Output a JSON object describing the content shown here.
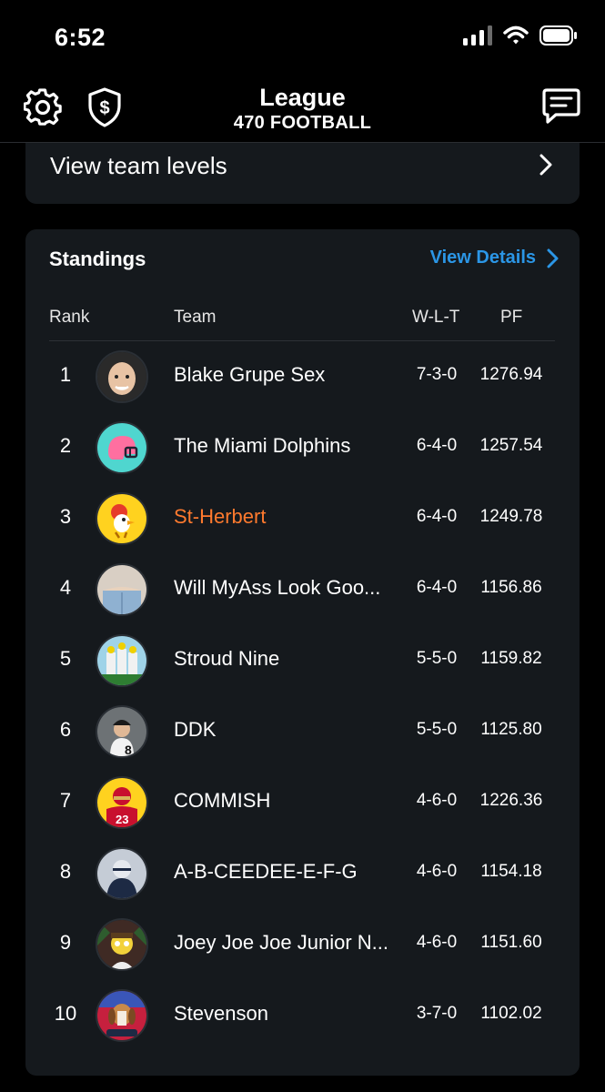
{
  "status_bar": {
    "time": "6:52",
    "icons": [
      "signal-icon",
      "wifi-icon",
      "battery-icon"
    ]
  },
  "nav": {
    "title": "League",
    "subtitle": "470 FOOTBALL",
    "left_icons": [
      "gear-icon",
      "shield-dollar-icon"
    ],
    "right_icon": "chat-icon"
  },
  "levels": {
    "label": "View team levels"
  },
  "standings": {
    "title": "Standings",
    "details_label": "View Details",
    "columns": {
      "rank": "Rank",
      "team": "Team",
      "wlt": "W-L-T",
      "pf": "PF"
    },
    "accent_color": "#2b96e6",
    "highlight_color": "#ff7a2e",
    "rows": [
      {
        "rank": "1",
        "team": "Blake Grupe Sex",
        "wlt": "7-3-0",
        "pf": "1276.94",
        "avatar": "face-avatar",
        "highlight": false
      },
      {
        "rank": "2",
        "team": "The Miami Dolphins",
        "wlt": "6-4-0",
        "pf": "1257.54",
        "avatar": "helmet-avatar",
        "highlight": false
      },
      {
        "rank": "3",
        "team": "St-Herbert",
        "wlt": "6-4-0",
        "pf": "1249.78",
        "avatar": "rooster-avatar",
        "highlight": true
      },
      {
        "rank": "4",
        "team": "Will MyAss Look Goo...",
        "wlt": "6-4-0",
        "pf": "1156.86",
        "avatar": "photo-avatar",
        "highlight": false
      },
      {
        "rank": "5",
        "team": "Stroud Nine",
        "wlt": "5-5-0",
        "pf": "1159.82",
        "avatar": "photo-avatar",
        "highlight": false
      },
      {
        "rank": "6",
        "team": "DDK",
        "wlt": "5-5-0",
        "pf": "1125.80",
        "avatar": "photo-avatar",
        "highlight": false
      },
      {
        "rank": "7",
        "team": "COMMISH",
        "wlt": "4-6-0",
        "pf": "1226.36",
        "avatar": "jersey-avatar",
        "highlight": false
      },
      {
        "rank": "8",
        "team": "A-B-CEEDEE-E-F-G",
        "wlt": "4-6-0",
        "pf": "1154.18",
        "avatar": "photo-avatar",
        "highlight": false
      },
      {
        "rank": "9",
        "team": "Joey Joe Joe Junior N...",
        "wlt": "4-6-0",
        "pf": "1151.60",
        "avatar": "cartoon-avatar",
        "highlight": false
      },
      {
        "rank": "10",
        "team": "Stevenson",
        "wlt": "3-7-0",
        "pf": "1102.02",
        "avatar": "dog-avatar",
        "highlight": false
      }
    ]
  }
}
